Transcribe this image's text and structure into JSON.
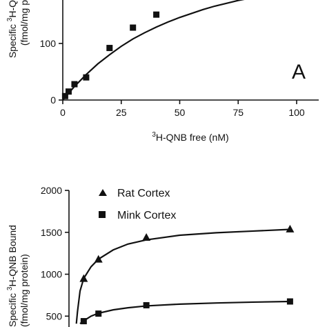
{
  "chart_data": [
    {
      "type": "scatter",
      "panel_label": "A",
      "xlabel_sup": "3",
      "xlabel": "H-QNB free (nM)",
      "ylabel_line1_pre": "Specific ",
      "ylabel_line1_sup": "3",
      "ylabel_line1_post": "H-Q",
      "ylabel_line2": "(fmol/mg p",
      "xlim": [
        0,
        110
      ],
      "ylim": [
        0,
        180
      ],
      "x_ticks": [
        "0",
        "25",
        "50",
        "75",
        "100"
      ],
      "y_ticks": [
        "0",
        "100"
      ],
      "grid": false,
      "series": [
        {
          "marker": "square",
          "points": [
            [
              1,
              7
            ],
            [
              2.5,
              15
            ],
            [
              5,
              28
            ],
            [
              10,
              40
            ],
            [
              20,
              92
            ],
            [
              30,
              128
            ],
            [
              40,
              151
            ]
          ]
        }
      ],
      "curve": [
        [
          0,
          0
        ],
        [
          5,
          24
        ],
        [
          10,
          45
        ],
        [
          15,
          64
        ],
        [
          20,
          80
        ],
        [
          25,
          95
        ],
        [
          30,
          108
        ],
        [
          35,
          119
        ],
        [
          40,
          129
        ],
        [
          45,
          138
        ],
        [
          50,
          146
        ],
        [
          55,
          153
        ],
        [
          60,
          160
        ],
        [
          65,
          166
        ],
        [
          70,
          171
        ],
        [
          75,
          176
        ],
        [
          80,
          180
        ]
      ]
    },
    {
      "type": "scatter",
      "ylabel_line1_pre": "Specific ",
      "ylabel_line1_sup": "3",
      "ylabel_line1_post": "H-QNB Bound",
      "ylabel_line2": "(fmol/mg protein)",
      "xlim": [
        0,
        110
      ],
      "ylim": [
        410,
        2000
      ],
      "y_ticks": [
        "500",
        "1000",
        "1500",
        "2000"
      ],
      "grid": false,
      "legend": "top-left",
      "series": [
        {
          "name": "Rat Cortex",
          "marker": "triangle",
          "points": [
            [
              4,
              950
            ],
            [
              8,
              1180
            ],
            [
              21,
              1440
            ],
            [
              60,
              1540
            ]
          ]
        },
        {
          "name": "Mink Cortex",
          "marker": "square",
          "points": [
            [
              4,
              440
            ],
            [
              8,
              530
            ],
            [
              21,
              630
            ],
            [
              60,
              675
            ]
          ]
        }
      ],
      "curves": [
        [
          [
            2,
            410
          ],
          [
            2.3,
            550
          ],
          [
            3,
            800
          ],
          [
            4,
            950
          ],
          [
            6,
            1090
          ],
          [
            8,
            1180
          ],
          [
            12,
            1290
          ],
          [
            16,
            1360
          ],
          [
            21,
            1410
          ],
          [
            30,
            1465
          ],
          [
            40,
            1495
          ],
          [
            50,
            1515
          ],
          [
            60,
            1535
          ]
        ],
        [
          [
            3,
            410
          ],
          [
            4,
            445
          ],
          [
            6,
            500
          ],
          [
            8,
            535
          ],
          [
            12,
            575
          ],
          [
            16,
            600
          ],
          [
            21,
            622
          ],
          [
            30,
            643
          ],
          [
            40,
            657
          ],
          [
            50,
            667
          ],
          [
            60,
            675
          ]
        ]
      ]
    }
  ]
}
